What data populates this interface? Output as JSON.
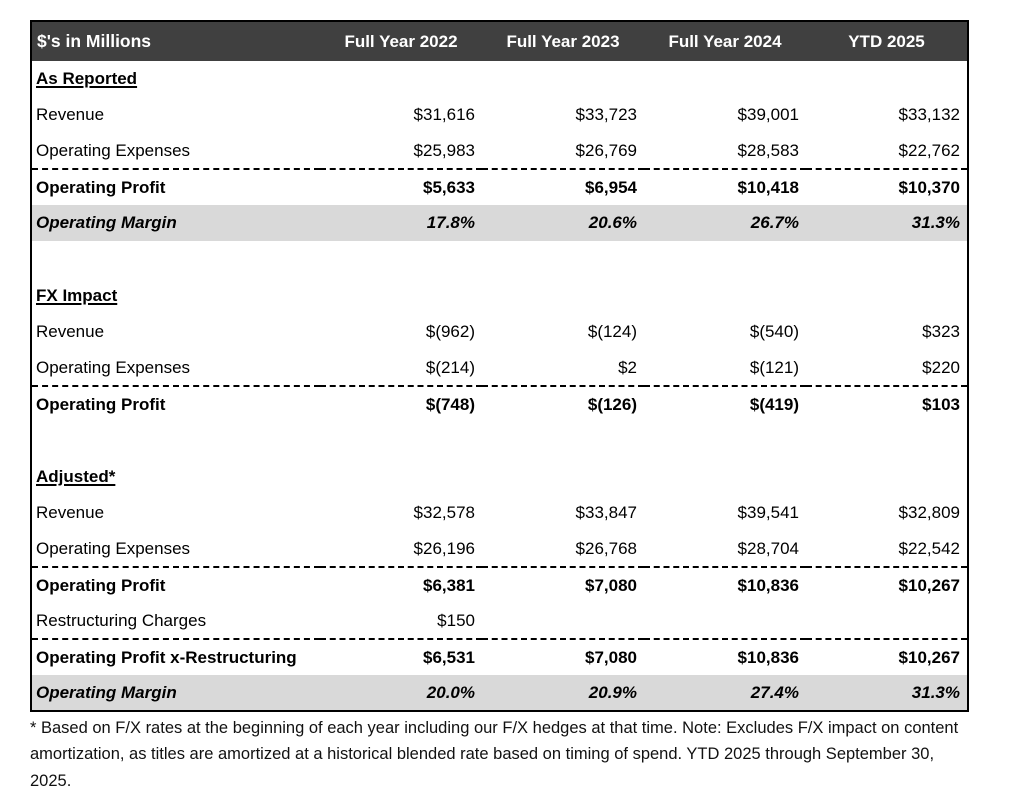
{
  "table": {
    "header": {
      "label": "$'s in Millions",
      "columns": [
        "Full Year 2022",
        "Full Year 2023",
        "Full Year 2024",
        "YTD 2025"
      ]
    },
    "sections": [
      {
        "title": "As Reported",
        "rows": [
          {
            "label": "Revenue",
            "values": [
              "$31,616",
              "$33,723",
              "$39,001",
              "$33,132"
            ]
          },
          {
            "label": "Operating Expenses",
            "values": [
              "$25,983",
              "$26,769",
              "$28,583",
              "$22,762"
            ]
          },
          {
            "label": "Operating Profit",
            "values": [
              "$5,633",
              "$6,954",
              "$10,418",
              "$10,370"
            ]
          },
          {
            "label": "Operating Margin",
            "values": [
              "17.8%",
              "20.6%",
              "26.7%",
              "31.3%"
            ]
          }
        ]
      },
      {
        "title": "FX Impact",
        "rows": [
          {
            "label": "Revenue",
            "values": [
              "$(962)",
              "$(124)",
              "$(540)",
              "$323"
            ]
          },
          {
            "label": "Operating Expenses",
            "values": [
              "$(214)",
              "$2",
              "$(121)",
              "$220"
            ]
          },
          {
            "label": "Operating Profit",
            "values": [
              "$(748)",
              "$(126)",
              "$(419)",
              "$103"
            ]
          }
        ]
      },
      {
        "title": "Adjusted*",
        "rows": [
          {
            "label": "Revenue",
            "values": [
              "$32,578",
              "$33,847",
              "$39,541",
              "$32,809"
            ]
          },
          {
            "label": "Operating Expenses",
            "values": [
              "$26,196",
              "$26,768",
              "$28,704",
              "$22,542"
            ]
          },
          {
            "label": "Operating Profit",
            "values": [
              "$6,381",
              "$7,080",
              "$10,836",
              "$10,267"
            ]
          },
          {
            "label": "Restructuring Charges",
            "values": [
              "$150",
              "",
              "",
              ""
            ]
          },
          {
            "label": "Operating Profit x-Restructuring",
            "values": [
              "$6,531",
              "$7,080",
              "$10,836",
              "$10,267"
            ]
          },
          {
            "label": "Operating Margin",
            "values": [
              "20.0%",
              "20.9%",
              "27.4%",
              "31.3%"
            ]
          }
        ]
      }
    ]
  },
  "footnote": "* Based on F/X rates at the beginning of each year including our F/X hedges at that time. Note: Excludes F/X impact on content amortization, as titles are amortized at a historical blended rate based on timing of spend. YTD 2025 through September 30, 2025.",
  "colors": {
    "header_bg": "#404040",
    "header_text": "#ffffff",
    "margin_row_bg": "#d9d9d9",
    "border": "#000000"
  }
}
